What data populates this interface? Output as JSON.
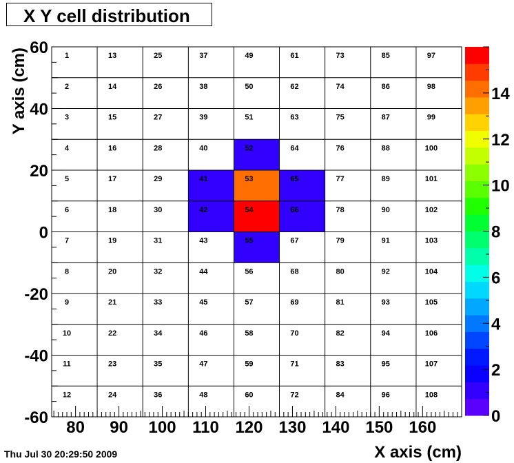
{
  "chart_data": {
    "type": "heatmap",
    "title": "X Y cell distribution",
    "xlabel": "X axis (cm)",
    "ylabel": "Y axis (cm)",
    "xlim": [
      74.5,
      169
    ],
    "ylim": [
      -60,
      60
    ],
    "x_ticks": [
      "80",
      "90",
      "100",
      "110",
      "120",
      "130",
      "140",
      "150",
      "160"
    ],
    "y_ticks": [
      "60",
      "40",
      "20",
      "0",
      "-20",
      "-40",
      "-60"
    ],
    "columns": 9,
    "rows": 12,
    "cell_numbers": [
      [
        "1",
        "13",
        "25",
        "37",
        "49",
        "61",
        "73",
        "85",
        "97"
      ],
      [
        "2",
        "14",
        "26",
        "38",
        "50",
        "62",
        "74",
        "86",
        "98"
      ],
      [
        "3",
        "15",
        "27",
        "39",
        "51",
        "63",
        "75",
        "87",
        "99"
      ],
      [
        "4",
        "16",
        "28",
        "40",
        "52",
        "64",
        "76",
        "88",
        "100"
      ],
      [
        "5",
        "17",
        "29",
        "41",
        "53",
        "65",
        "77",
        "89",
        "101"
      ],
      [
        "6",
        "18",
        "30",
        "42",
        "54",
        "66",
        "78",
        "90",
        "102"
      ],
      [
        "7",
        "19",
        "31",
        "43",
        "55",
        "67",
        "79",
        "91",
        "103"
      ],
      [
        "8",
        "20",
        "32",
        "44",
        "56",
        "68",
        "80",
        "92",
        "104"
      ],
      [
        "9",
        "21",
        "33",
        "45",
        "57",
        "69",
        "81",
        "93",
        "105"
      ],
      [
        "10",
        "22",
        "34",
        "46",
        "58",
        "70",
        "82",
        "94",
        "106"
      ],
      [
        "11",
        "23",
        "35",
        "47",
        "59",
        "71",
        "83",
        "95",
        "107"
      ],
      [
        "12",
        "24",
        "36",
        "48",
        "60",
        "72",
        "84",
        "96",
        "108"
      ]
    ],
    "values": [
      [
        0,
        0,
        0,
        0,
        0,
        0,
        0,
        0,
        0
      ],
      [
        0,
        0,
        0,
        0,
        0,
        0,
        0,
        0,
        0
      ],
      [
        0,
        0,
        0,
        0,
        0,
        0,
        0,
        0,
        0
      ],
      [
        0,
        0,
        0,
        0,
        1,
        0,
        0,
        0,
        0
      ],
      [
        0,
        0,
        0,
        1,
        14,
        1,
        0,
        0,
        0
      ],
      [
        0,
        0,
        0,
        1,
        16,
        1,
        0,
        0,
        0
      ],
      [
        0,
        0,
        0,
        0,
        1,
        0,
        0,
        0,
        0
      ],
      [
        0,
        0,
        0,
        0,
        0,
        0,
        0,
        0,
        0
      ],
      [
        0,
        0,
        0,
        0,
        0,
        0,
        0,
        0,
        0
      ],
      [
        0,
        0,
        0,
        0,
        0,
        0,
        0,
        0,
        0
      ],
      [
        0,
        0,
        0,
        0,
        0,
        0,
        0,
        0,
        0
      ],
      [
        0,
        0,
        0,
        0,
        0,
        0,
        0,
        0,
        0
      ]
    ],
    "zlim": [
      0,
      16
    ],
    "colorbar_ticks": [
      "0",
      "2",
      "4",
      "6",
      "8",
      "10",
      "12",
      "14"
    ],
    "colorbar_colors": [
      "#5a00ff",
      "#3200ff",
      "#0a00ff",
      "#0018ff",
      "#0046ff",
      "#0078ff",
      "#00a8ff",
      "#00d8ff",
      "#00ffe6",
      "#00ffaa",
      "#00ff6e",
      "#00ff32",
      "#20ff00",
      "#5aff00",
      "#8cff00",
      "#c3ff00",
      "#f0ff00",
      "#ffd200",
      "#ffa000",
      "#ff6e00",
      "#ff3c00",
      "#ff0000"
    ],
    "grid": true
  },
  "footer": {
    "timestamp": "Thu Jul 30 20:29:50 2009"
  }
}
